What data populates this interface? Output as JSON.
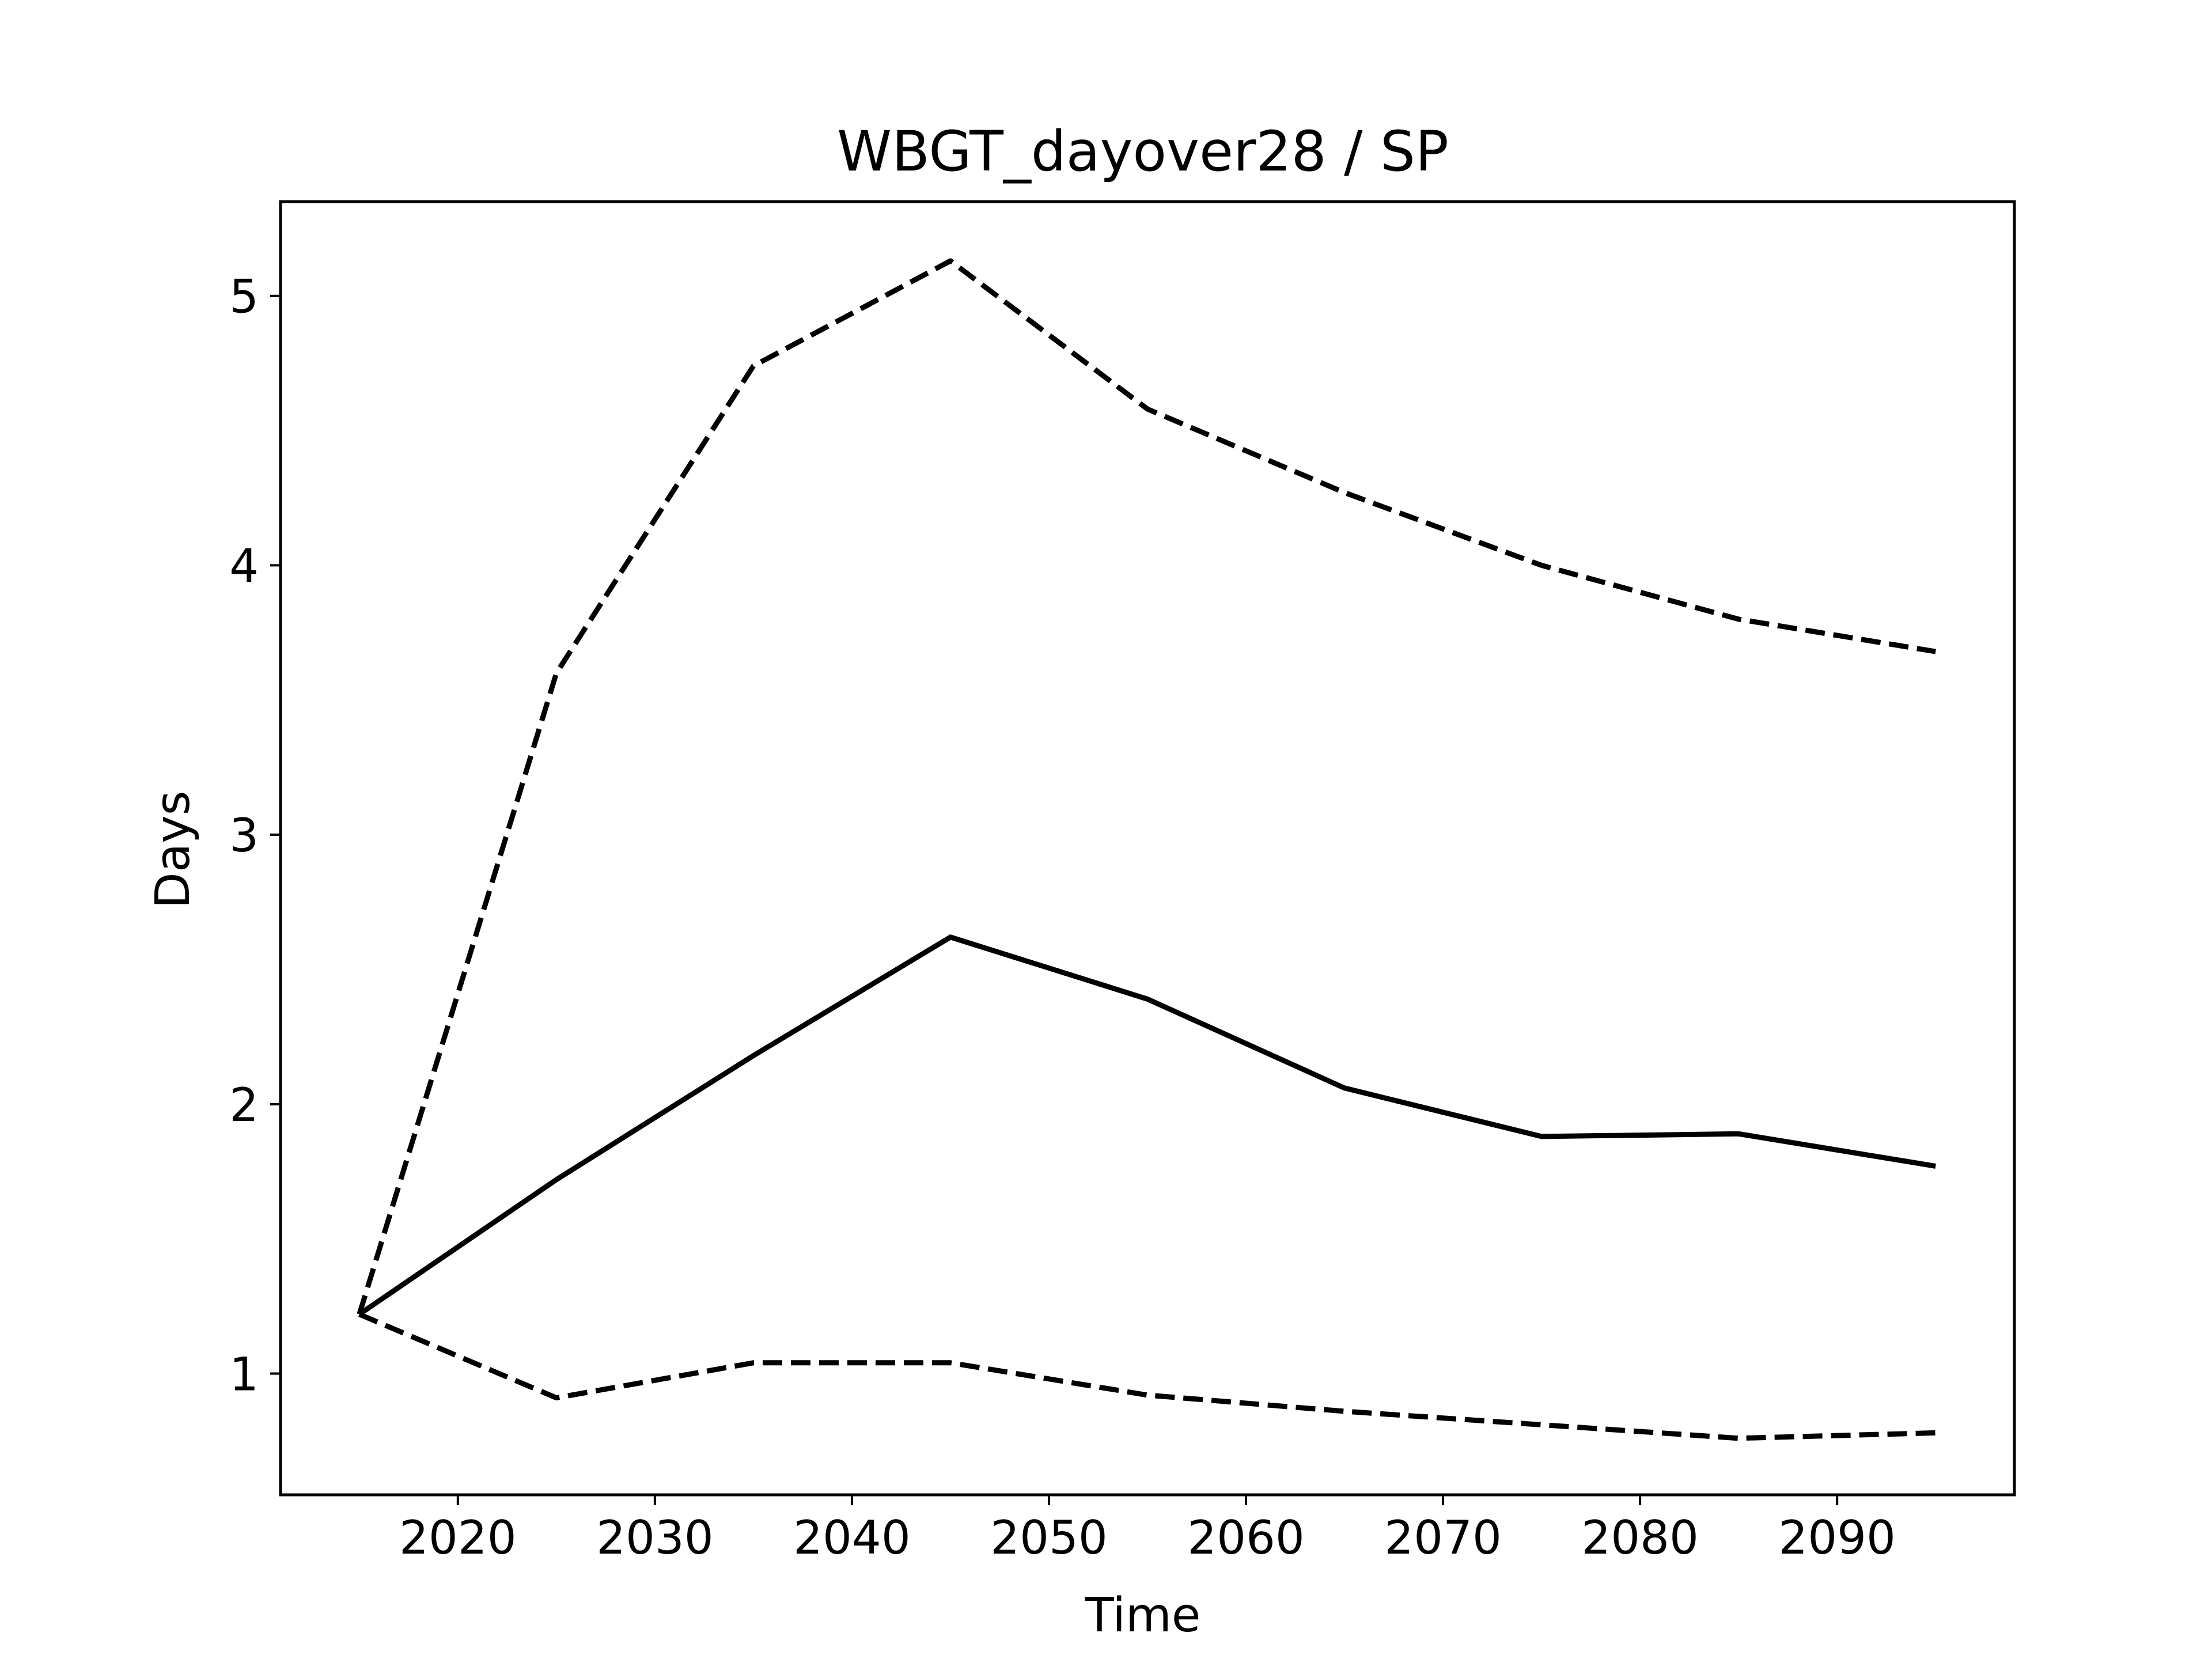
{
  "chart_data": {
    "type": "line",
    "title": "WBGT_dayover28 / SP",
    "xlabel": "Time",
    "ylabel": "Days",
    "xlim": [
      2011,
      2099
    ],
    "ylim": [
      0.55,
      5.35
    ],
    "xticks": [
      2020,
      2030,
      2040,
      2050,
      2060,
      2070,
      2080,
      2090
    ],
    "yticks": [
      1,
      2,
      3,
      4,
      5
    ],
    "grid": false,
    "legend": "none",
    "x": [
      2015,
      2025,
      2035,
      2045,
      2055,
      2065,
      2075,
      2085,
      2095
    ],
    "series": [
      {
        "style": "solid",
        "color": "#000000",
        "values": [
          1.22,
          1.72,
          2.18,
          2.62,
          2.39,
          2.06,
          1.88,
          1.89,
          1.77
        ]
      },
      {
        "style": "dashed",
        "color": "#000000",
        "values": [
          1.22,
          3.6,
          4.74,
          5.13,
          4.58,
          4.27,
          4.0,
          3.8,
          3.68
        ]
      },
      {
        "style": "dashed",
        "color": "#000000",
        "values": [
          1.22,
          0.91,
          1.04,
          1.04,
          0.92,
          0.86,
          0.81,
          0.76,
          0.78
        ]
      }
    ]
  }
}
